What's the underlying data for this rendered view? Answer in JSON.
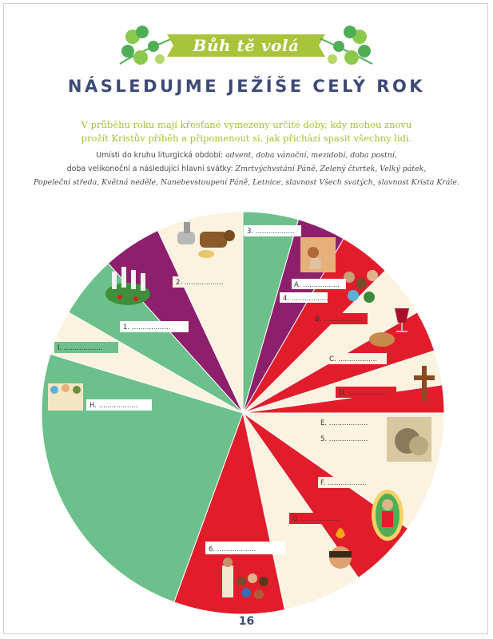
{
  "header": {
    "ribbon_text": "Bůh tě volá",
    "title": "NÁSLEDUJME JEŽÍŠE CELÝ ROK"
  },
  "intro": {
    "line1": "V průběhu roku mají křesťané vymezeny určité doby, kdy mohou znovu",
    "line2": "prožít Kristův příběh a připomenout si, jak přichází spasit všechny lidi."
  },
  "instructions": {
    "lead": "Umísti do kruhu liturgická období: ",
    "seasons": "advent, doba vánoční, mezidobí, doba postní,",
    "line2_lead": "doba velikonoční a následující hlavní svátky: ",
    "feasts_1": "Zmrtvýchvstání Páně, Zelený čtvrtek, Velký pátek,",
    "feasts_2": "Popeleční středa, Květná neděle, Nanebevstoupení Páně, Letnice, slavnost Všech svatých, slavnost Krista Krále."
  },
  "wheel_labels": {
    "l3": "3. ..................",
    "l2": "2. ..................",
    "l1": "1. ..................",
    "lI": "I. ..................",
    "lH": "H. ..................",
    "lA": "A. .................",
    "l4": "4. .................",
    "lB": "B. ..................",
    "lC": "C. ..................",
    "lD": "D. ..................",
    "lE": "E. ..................",
    "l5": "5. ..................",
    "lF": "F. ..................",
    "lG": "G. ..................",
    "l6": "6. ..................",
    "lJ": "......................"
  },
  "colors": {
    "green": "#6cc08b",
    "purple": "#8e1f6c",
    "red": "#e21d2b",
    "cream": "#fcf2e0",
    "navy": "#3c4a78",
    "ribbon": "#a7c43a",
    "leaf": "#4fae55"
  },
  "page_number": "16"
}
